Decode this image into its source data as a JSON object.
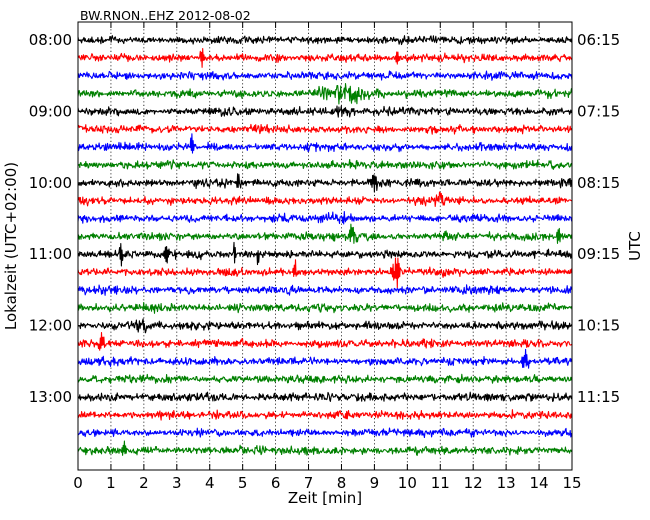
{
  "chart_data": {
    "type": "line",
    "title": "BW.RNON..EHZ 2012-08-02",
    "xlabel": "Zeit  [min]",
    "ylabel_left": "Lokalzeit (UTC+02:00)",
    "ylabel_right": "UTC",
    "xlim": [
      0,
      15
    ],
    "xticks": [
      "0",
      "1",
      "2",
      "3",
      "4",
      "5",
      "6",
      "7",
      "8",
      "9",
      "10",
      "11",
      "12",
      "13",
      "14",
      "15"
    ],
    "trace_interval_min": 15,
    "trace_count": 24,
    "trace_colors": [
      "#000000",
      "#ff0000",
      "#0000ff",
      "#008000"
    ],
    "grid": "vertical dotted at each minute",
    "left_ticks": [
      {
        "label": "08:00",
        "trace": 0
      },
      {
        "label": "09:00",
        "trace": 4
      },
      {
        "label": "10:00",
        "trace": 8
      },
      {
        "label": "11:00",
        "trace": 12
      },
      {
        "label": "12:00",
        "trace": 16
      },
      {
        "label": "13:00",
        "trace": 20
      }
    ],
    "right_ticks": [
      {
        "label": "06:15",
        "trace": 0
      },
      {
        "label": "07:15",
        "trace": 4
      },
      {
        "label": "08:15",
        "trace": 8
      },
      {
        "label": "09:15",
        "trace": 12
      },
      {
        "label": "10:15",
        "trace": 16
      },
      {
        "label": "11:15",
        "trace": 20
      }
    ],
    "events": [
      {
        "trace": 1,
        "minute": 3.75,
        "amp": 2.2,
        "width": 0.05
      },
      {
        "trace": 1,
        "minute": 9.7,
        "amp": 1.3,
        "width": 0.05
      },
      {
        "trace": 3,
        "minute": 8.0,
        "amp": 2.6,
        "width": 0.7
      },
      {
        "trace": 4,
        "minute": 8.0,
        "amp": 1.3,
        "width": 0.25
      },
      {
        "trace": 6,
        "minute": 3.45,
        "amp": 1.8,
        "width": 0.06
      },
      {
        "trace": 8,
        "minute": 4.9,
        "amp": 1.3,
        "width": 0.08
      },
      {
        "trace": 8,
        "minute": 9.0,
        "amp": 1.2,
        "width": 0.08
      },
      {
        "trace": 9,
        "minute": 10.95,
        "amp": 1.4,
        "width": 0.15
      },
      {
        "trace": 10,
        "minute": 7.8,
        "amp": 1.3,
        "width": 0.3
      },
      {
        "trace": 11,
        "minute": 8.3,
        "amp": 1.3,
        "width": 0.1
      },
      {
        "trace": 11,
        "minute": 11.2,
        "amp": 1.4,
        "width": 0.05
      },
      {
        "trace": 11,
        "minute": 14.6,
        "amp": 1.4,
        "width": 0.05
      },
      {
        "trace": 12,
        "minute": 1.3,
        "amp": 1.6,
        "width": 0.05
      },
      {
        "trace": 12,
        "minute": 2.7,
        "amp": 1.6,
        "width": 0.06
      },
      {
        "trace": 12,
        "minute": 4.75,
        "amp": 1.5,
        "width": 0.04
      },
      {
        "trace": 12,
        "minute": 5.45,
        "amp": 1.5,
        "width": 0.04
      },
      {
        "trace": 13,
        "minute": 6.6,
        "amp": 1.3,
        "width": 0.06
      },
      {
        "trace": 13,
        "minute": 9.65,
        "amp": 2.2,
        "width": 0.1
      },
      {
        "trace": 16,
        "minute": 1.9,
        "amp": 1.2,
        "width": 0.2
      },
      {
        "trace": 17,
        "minute": 0.7,
        "amp": 1.6,
        "width": 0.08
      },
      {
        "trace": 18,
        "minute": 13.6,
        "amp": 1.2,
        "width": 0.1
      },
      {
        "trace": 23,
        "minute": 1.4,
        "amp": 1.3,
        "width": 0.05
      }
    ]
  }
}
